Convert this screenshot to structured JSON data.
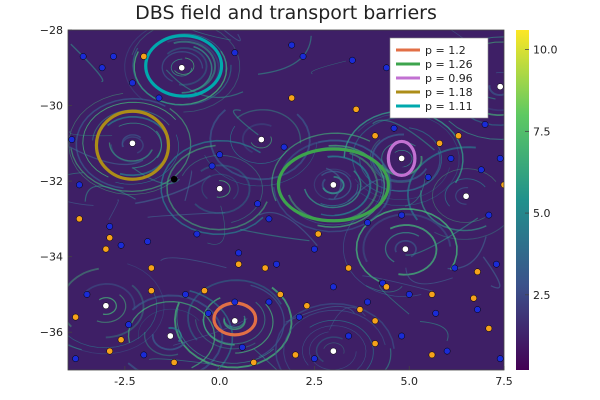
{
  "chart_data": {
    "type": "heatmap",
    "title": "DBS field and transport barriers",
    "xlabel": "",
    "ylabel": "",
    "xlim": [
      -4,
      7.5
    ],
    "ylim": [
      -37,
      -28
    ],
    "x_ticks": [
      -2.5,
      0.0,
      2.5,
      5.0,
      7.5
    ],
    "x_tick_labels": [
      "-2.5",
      "0.0",
      "2.5",
      "5.0",
      "7.5"
    ],
    "y_ticks": [
      -28,
      -30,
      -32,
      -34,
      -36
    ],
    "y_tick_labels": [
      "−28",
      "−30",
      "−32",
      "−34",
      "−36"
    ],
    "colorbar": {
      "colormap": "viridis",
      "range": [
        0.2,
        10.6
      ],
      "ticks": [
        2.5,
        5.0,
        7.5,
        10.0
      ],
      "tick_labels": [
        "2.5",
        "5.0",
        "7.5",
        "10.0"
      ]
    },
    "legend_position": "top-right",
    "series": [
      {
        "name": "p = 1.2",
        "color": "#e26f46",
        "center": [
          0.4,
          -35.65
        ],
        "radii": [
          0.55,
          0.42
        ]
      },
      {
        "name": "p = 1.26",
        "color": "#3da44d",
        "center": [
          3.0,
          -32.1
        ],
        "radii": [
          1.45,
          0.95
        ]
      },
      {
        "name": "p = 0.96",
        "color": "#c271d2",
        "center": [
          4.8,
          -31.4
        ],
        "radii": [
          0.35,
          0.45
        ]
      },
      {
        "name": "p = 1.18",
        "color": "#ac8d18",
        "center": [
          -2.3,
          -31.05
        ],
        "radii": [
          0.95,
          0.9
        ]
      },
      {
        "name": "p = 1.11",
        "color": "#00a9ad",
        "center": [
          -0.95,
          -28.95
        ],
        "radii": [
          1.0,
          0.8
        ]
      }
    ],
    "points": {
      "white": [
        [
          -1.0,
          -29.0
        ],
        [
          -2.3,
          -31.0
        ],
        [
          1.1,
          -30.9
        ],
        [
          0.0,
          -32.2
        ],
        [
          3.0,
          -32.1
        ],
        [
          4.8,
          -31.4
        ],
        [
          6.5,
          -32.4
        ],
        [
          4.9,
          -33.8
        ],
        [
          -3.0,
          -35.3
        ],
        [
          0.4,
          -35.7
        ],
        [
          -1.3,
          -36.1
        ],
        [
          3.0,
          -36.5
        ],
        [
          7.4,
          -29.5
        ]
      ],
      "black": [
        [
          -1.2,
          -31.95
        ]
      ],
      "blue": [
        [
          -3.6,
          -28.7
        ],
        [
          -3.1,
          -29.0
        ],
        [
          -2.8,
          -28.7
        ],
        [
          -2.3,
          -29.4
        ],
        [
          -1.6,
          -29.8
        ],
        [
          0.4,
          -28.6
        ],
        [
          1.9,
          -28.4
        ],
        [
          2.2,
          -28.7
        ],
        [
          3.5,
          -28.8
        ],
        [
          4.4,
          -29.0
        ],
        [
          5.1,
          -29.3
        ],
        [
          6.0,
          -29.2
        ],
        [
          6.8,
          -29.4
        ],
        [
          5.5,
          -30.0
        ],
        [
          4.6,
          -30.6
        ],
        [
          6.6,
          -30.2
        ],
        [
          7.0,
          -30.5
        ],
        [
          -3.9,
          -30.9
        ],
        [
          0.0,
          -31.3
        ],
        [
          -0.2,
          -31.6
        ],
        [
          1.7,
          -31.1
        ],
        [
          5.5,
          -31.9
        ],
        [
          6.1,
          -31.4
        ],
        [
          6.9,
          -31.7
        ],
        [
          7.4,
          -31.4
        ],
        [
          -3.7,
          -32.1
        ],
        [
          1.0,
          -32.6
        ],
        [
          1.3,
          -33.0
        ],
        [
          3.9,
          -33.1
        ],
        [
          4.8,
          -32.9
        ],
        [
          7.1,
          -32.9
        ],
        [
          -2.9,
          -33.2
        ],
        [
          -2.6,
          -33.7
        ],
        [
          -1.9,
          -33.6
        ],
        [
          -0.6,
          -33.4
        ],
        [
          0.5,
          -33.9
        ],
        [
          1.5,
          -34.2
        ],
        [
          2.5,
          -33.8
        ],
        [
          4.3,
          -34.7
        ],
        [
          6.2,
          -34.3
        ],
        [
          7.3,
          -34.2
        ],
        [
          -3.5,
          -35.0
        ],
        [
          -2.4,
          -35.8
        ],
        [
          -0.9,
          -35.0
        ],
        [
          -0.3,
          -35.5
        ],
        [
          0.4,
          -35.2
        ],
        [
          1.3,
          -35.2
        ],
        [
          2.1,
          -35.6
        ],
        [
          3.0,
          -34.8
        ],
        [
          3.9,
          -35.2
        ],
        [
          5.0,
          -35.0
        ],
        [
          5.7,
          -35.5
        ],
        [
          6.8,
          -35.4
        ],
        [
          -3.8,
          -36.7
        ],
        [
          -2.0,
          -36.6
        ],
        [
          0.6,
          -36.4
        ],
        [
          2.5,
          -36.7
        ],
        [
          3.4,
          -36.1
        ],
        [
          4.8,
          -36.1
        ],
        [
          6.0,
          -36.5
        ],
        [
          7.4,
          -36.7
        ]
      ],
      "orange": [
        [
          -2.0,
          -28.7
        ],
        [
          1.9,
          -29.8
        ],
        [
          3.6,
          -30.1
        ],
        [
          5.2,
          -29.6
        ],
        [
          4.1,
          -30.8
        ],
        [
          5.8,
          -31.0
        ],
        [
          6.3,
          -30.8
        ],
        [
          7.5,
          -32.1
        ],
        [
          -3.7,
          -33.0
        ],
        [
          -2.9,
          -33.5
        ],
        [
          -3.0,
          -33.8
        ],
        [
          -1.8,
          -34.3
        ],
        [
          0.5,
          -34.2
        ],
        [
          1.2,
          -34.3
        ],
        [
          2.6,
          -33.4
        ],
        [
          3.4,
          -34.3
        ],
        [
          4.4,
          -34.8
        ],
        [
          6.8,
          -34.4
        ],
        [
          -1.8,
          -34.9
        ],
        [
          -0.4,
          -34.9
        ],
        [
          1.6,
          -35.0
        ],
        [
          2.3,
          -35.3
        ],
        [
          3.7,
          -35.4
        ],
        [
          4.1,
          -35.7
        ],
        [
          5.6,
          -35.0
        ],
        [
          6.7,
          -35.1
        ],
        [
          7.1,
          -35.9
        ],
        [
          -3.8,
          -35.6
        ],
        [
          -2.6,
          -36.2
        ],
        [
          -2.9,
          -36.5
        ],
        [
          -1.2,
          -36.8
        ],
        [
          0.9,
          -36.8
        ],
        [
          2.0,
          -36.6
        ],
        [
          4.1,
          -36.3
        ],
        [
          5.6,
          -36.6
        ]
      ]
    }
  }
}
